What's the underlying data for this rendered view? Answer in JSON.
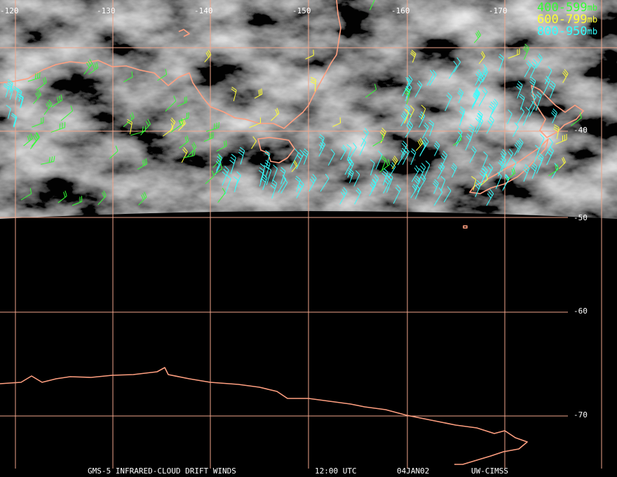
{
  "map": {
    "lon_labels": [
      "-120",
      "-130",
      "-140",
      "-150",
      "-160",
      "-170"
    ],
    "lat_labels": [
      "-40",
      "-50",
      "-60",
      "-70"
    ],
    "legend": [
      {
        "range": "400-599",
        "unit": "mb",
        "color": "#33ff33"
      },
      {
        "range": "600-799",
        "unit": "mb",
        "color": "#ffff33"
      },
      {
        "range": "800-950",
        "unit": "mb",
        "color": "#33ffff"
      }
    ],
    "footer": {
      "title": "GMS-5 INFRARED-CLOUD DRIFT WINDS",
      "time": "12:00 UTC",
      "date": "04JAN02",
      "credit": "UW-CIMSS"
    }
  }
}
